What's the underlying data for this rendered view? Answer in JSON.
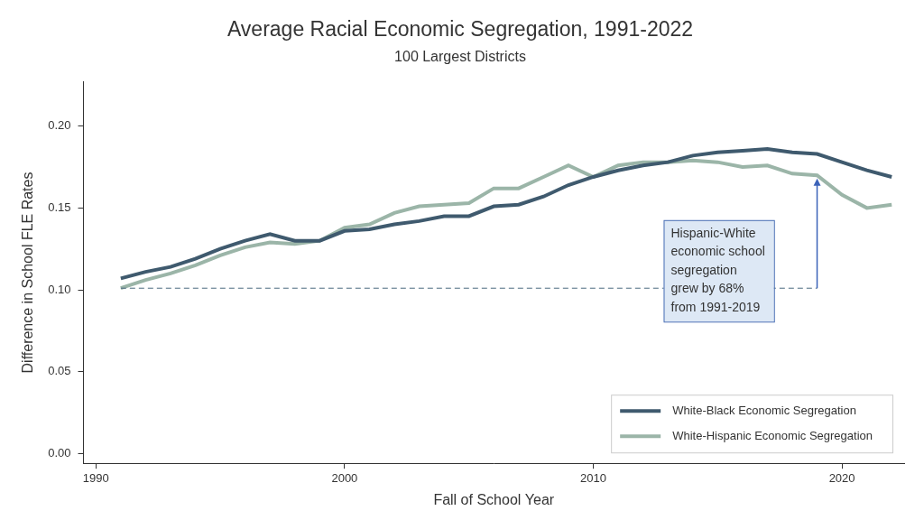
{
  "chart_data": {
    "type": "line",
    "title": "Average Racial Economic Segregation, 1991-2022",
    "subtitle": "100 Largest Districts",
    "x_label": "Fall of School Year",
    "y_label": "Difference in School FLE Rates",
    "x": [
      1991,
      1992,
      1993,
      1994,
      1995,
      1996,
      1997,
      1998,
      1999,
      2000,
      2001,
      2002,
      2003,
      2004,
      2005,
      2006,
      2007,
      2008,
      2009,
      2010,
      2011,
      2012,
      2013,
      2014,
      2015,
      2016,
      2017,
      2018,
      2019,
      2020,
      2021,
      2022
    ],
    "series": [
      {
        "name": "White-Black Economic Segregation",
        "color": "#3f5a6e",
        "values": [
          0.107,
          0.111,
          0.114,
          0.119,
          0.125,
          0.13,
          0.134,
          0.13,
          0.13,
          0.136,
          0.137,
          0.14,
          0.142,
          0.145,
          0.145,
          0.151,
          0.152,
          0.157,
          0.164,
          0.169,
          0.173,
          0.176,
          0.178,
          0.182,
          0.184,
          0.185,
          0.186,
          0.184,
          0.183,
          0.178,
          0.173,
          0.169
        ]
      },
      {
        "name": "White-Hispanic Economic Segregation",
        "color": "#9bb5a8",
        "values": [
          0.101,
          0.106,
          0.11,
          0.115,
          0.121,
          0.126,
          0.129,
          0.128,
          0.13,
          0.138,
          0.14,
          0.147,
          0.151,
          0.152,
          0.153,
          0.162,
          0.162,
          0.169,
          0.176,
          0.169,
          0.176,
          0.178,
          0.178,
          0.179,
          0.178,
          0.175,
          0.176,
          0.171,
          0.17,
          0.158,
          0.15,
          0.152
        ]
      }
    ],
    "xlim": [
      1989.5,
      2022.5
    ],
    "xticks": [
      1990,
      2000,
      2010,
      2020
    ],
    "ylim": [
      -0.006,
      0.227
    ],
    "yticks": [
      {
        "value": 0,
        "label": "0.00"
      },
      {
        "value": 0.05,
        "label": "0.05"
      },
      {
        "value": 0.1,
        "label": "0.10"
      },
      {
        "value": 0.15,
        "label": "0.15"
      },
      {
        "value": 0.2,
        "label": "0.20"
      }
    ],
    "grid": false,
    "legend": "lower right",
    "annotation": {
      "text": [
        "Hispanic-White",
        "economic school",
        "segregation",
        "grew by 68%",
        "from 1991-2019"
      ],
      "reference_line": {
        "y": 0.101,
        "x": [
          1991,
          2019
        ]
      },
      "arrow": {
        "x": 2019,
        "y": [
          0.101,
          0.168
        ]
      }
    }
  }
}
